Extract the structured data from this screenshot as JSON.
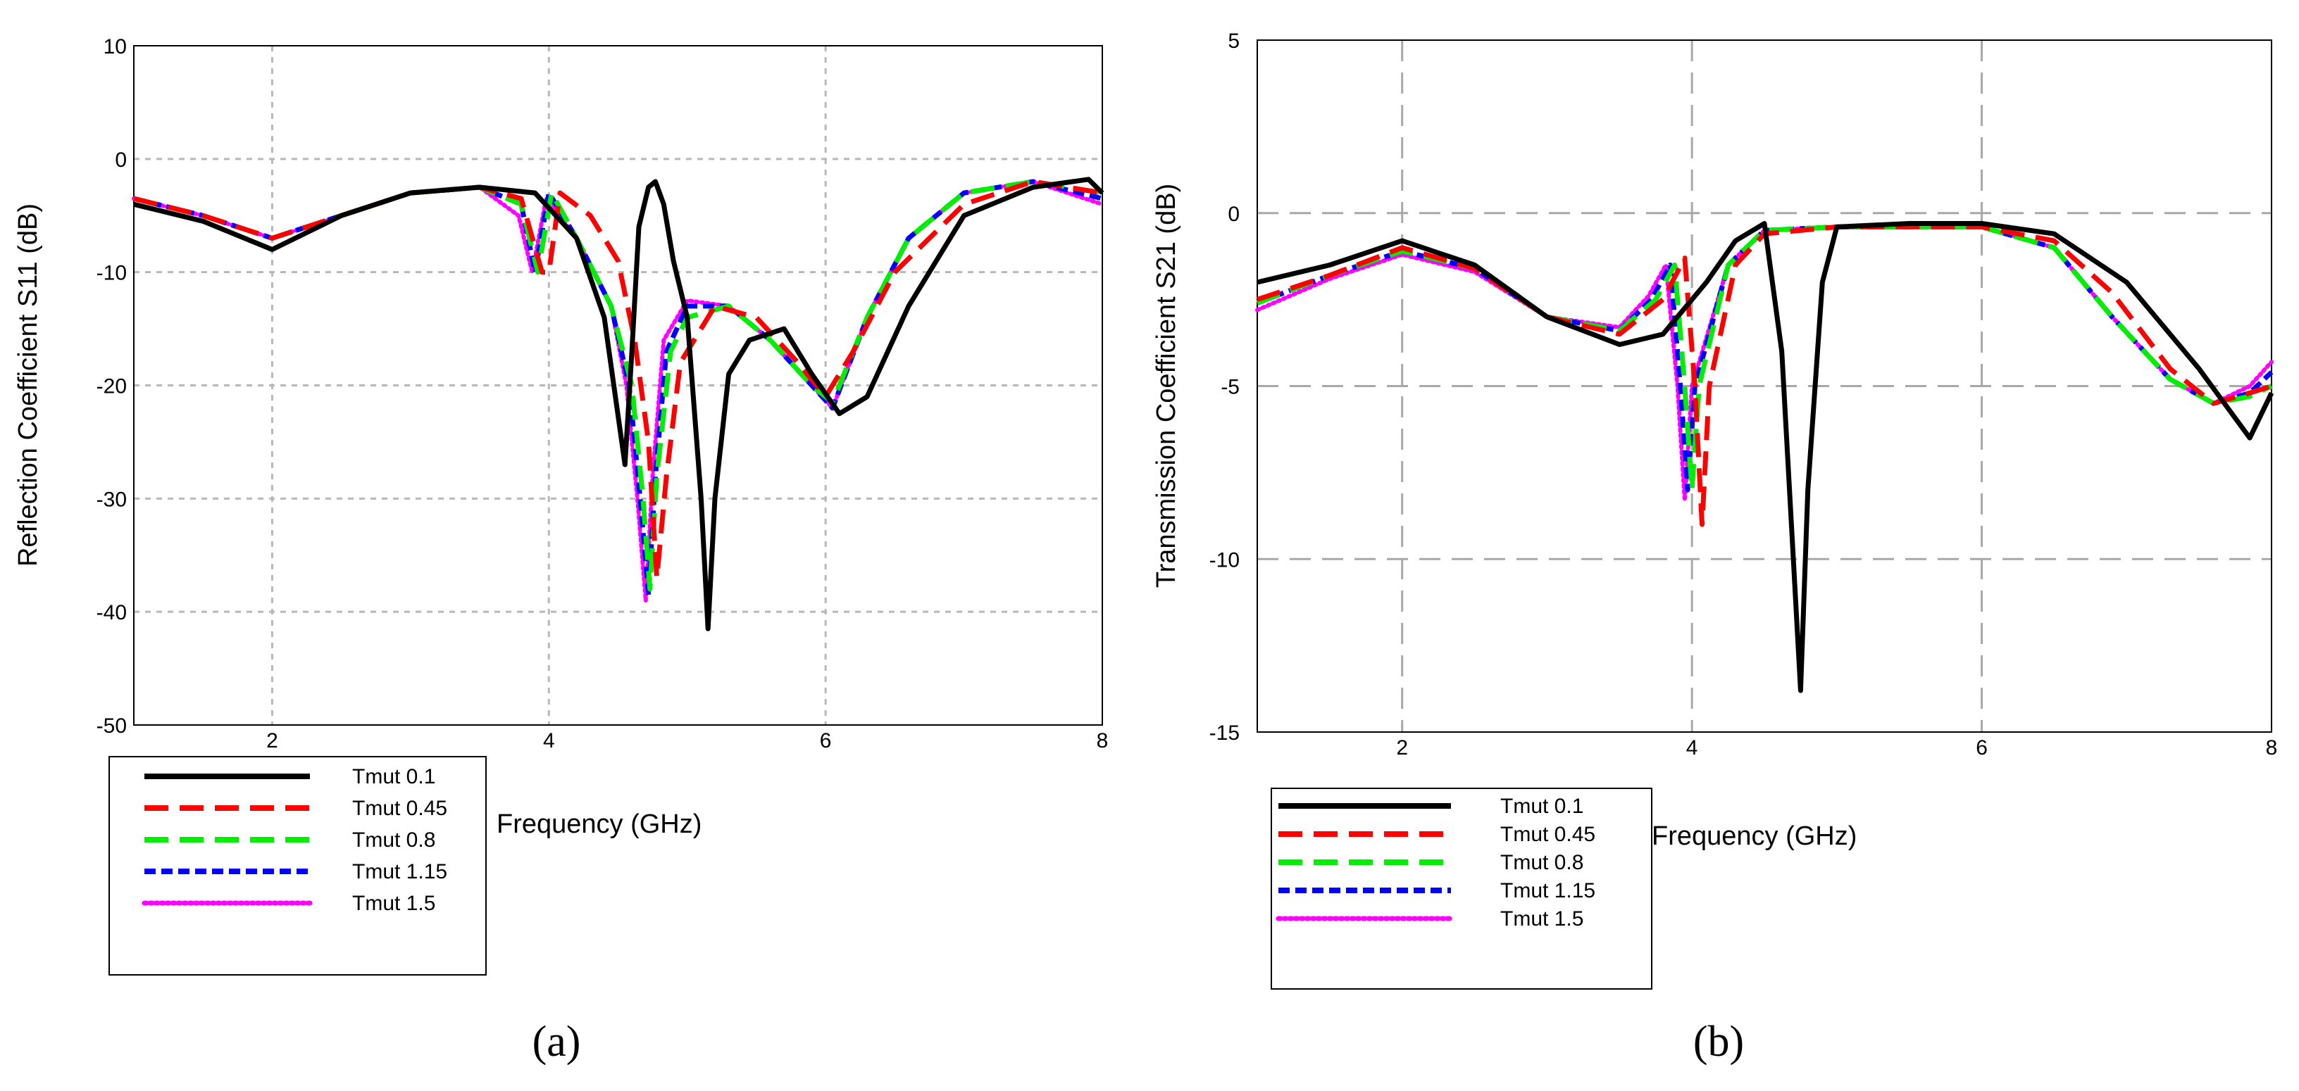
{
  "legend_series": [
    "Tmut 0.1",
    "Tmut 0.45",
    "Tmut 0.8",
    "Tmut 1.15",
    "Tmut 1.5"
  ],
  "series_colors": [
    "#000000",
    "#ff0000",
    "#00ee00",
    "#0000ff",
    "#ff00ff"
  ],
  "series_styles": [
    "solid",
    "long-dash",
    "long-dash",
    "short-dash",
    "dotted"
  ],
  "chart_data": [
    {
      "type": "line",
      "panel_label": "(a)",
      "title": "",
      "xlabel": "Frequency (GHz)",
      "ylabel": "Reflection Coefficient S11 (dB)",
      "xlim": [
        1,
        8
      ],
      "ylim": [
        -50,
        10
      ],
      "xticks": [
        2,
        4,
        6,
        8
      ],
      "yticks": [
        10,
        0,
        -10,
        -20,
        -30,
        -40,
        -50
      ],
      "grid": true,
      "legend_position": "bottom-left",
      "series": [
        {
          "name": "Tmut 0.1",
          "x": [
            1.0,
            1.5,
            2.0,
            2.5,
            3.0,
            3.5,
            3.9,
            4.2,
            4.4,
            4.55,
            4.6,
            4.65,
            4.72,
            4.77,
            4.83,
            4.9,
            5.0,
            5.1,
            5.15,
            5.2,
            5.3,
            5.45,
            5.7,
            5.9,
            6.1,
            6.3,
            6.6,
            7.0,
            7.5,
            7.9,
            8.0
          ],
          "y": [
            -4.0,
            -5.5,
            -8.0,
            -5.0,
            -3.0,
            -2.5,
            -3.0,
            -7.0,
            -14.0,
            -27.0,
            -17.0,
            -6.0,
            -2.5,
            -2.0,
            -4.0,
            -9.0,
            -14.0,
            -30.0,
            -41.5,
            -30.0,
            -19.0,
            -16.0,
            -15.0,
            -19.0,
            -22.5,
            -21.0,
            -13.0,
            -5.0,
            -2.5,
            -1.8,
            -3.0
          ]
        },
        {
          "name": "Tmut 0.45",
          "x": [
            1.0,
            1.5,
            2.0,
            2.5,
            3.0,
            3.5,
            3.8,
            3.95,
            4.0,
            4.08,
            4.3,
            4.5,
            4.62,
            4.72,
            4.78,
            4.85,
            4.95,
            5.2,
            5.5,
            5.8,
            6.0,
            6.2,
            6.5,
            7.0,
            7.5,
            8.0
          ],
          "y": [
            -3.5,
            -5.0,
            -7.0,
            -5.0,
            -3.0,
            -2.5,
            -3.5,
            -10.0,
            -10.0,
            -3.0,
            -5.0,
            -9.0,
            -16.0,
            -25.0,
            -37.0,
            -28.0,
            -18.0,
            -13.0,
            -14.0,
            -18.0,
            -21.0,
            -17.0,
            -10.0,
            -4.0,
            -2.0,
            -3.0
          ]
        },
        {
          "name": "Tmut 0.8",
          "x": [
            1.0,
            1.5,
            2.0,
            2.5,
            3.0,
            3.5,
            3.8,
            3.92,
            4.02,
            4.2,
            4.45,
            4.6,
            4.68,
            4.73,
            4.78,
            4.88,
            5.0,
            5.3,
            5.6,
            5.9,
            6.05,
            6.3,
            6.6,
            7.0,
            7.5,
            8.0
          ],
          "y": [
            -3.5,
            -5.0,
            -7.0,
            -5.0,
            -3.0,
            -2.5,
            -4.0,
            -10.0,
            -3.0,
            -7.0,
            -13.0,
            -20.0,
            -30.0,
            -38.0,
            -28.0,
            -17.0,
            -14.0,
            -13.0,
            -16.0,
            -20.0,
            -21.5,
            -14.0,
            -7.0,
            -3.0,
            -2.0,
            -3.0
          ]
        },
        {
          "name": "Tmut 1.15",
          "x": [
            1.0,
            1.5,
            2.0,
            2.5,
            3.0,
            3.5,
            3.8,
            3.9,
            4.0,
            4.2,
            4.45,
            4.58,
            4.66,
            4.72,
            4.77,
            4.85,
            5.0,
            5.3,
            5.6,
            5.9,
            6.05,
            6.3,
            6.6,
            7.0,
            7.5,
            8.0
          ],
          "y": [
            -3.5,
            -5.0,
            -7.0,
            -5.0,
            -3.0,
            -2.5,
            -4.0,
            -10.0,
            -3.0,
            -7.0,
            -13.0,
            -20.0,
            -30.0,
            -38.5,
            -28.0,
            -17.0,
            -13.0,
            -13.0,
            -16.0,
            -20.0,
            -22.0,
            -14.0,
            -7.0,
            -3.0,
            -2.0,
            -3.5
          ]
        },
        {
          "name": "Tmut 1.5",
          "x": [
            1.0,
            1.5,
            2.0,
            2.5,
            3.0,
            3.5,
            3.78,
            3.88,
            3.98,
            4.2,
            4.45,
            4.56,
            4.64,
            4.7,
            4.75,
            4.83,
            5.0,
            5.3,
            5.6,
            5.9,
            6.05,
            6.3,
            6.6,
            7.0,
            7.5,
            8.0
          ],
          "y": [
            -3.5,
            -5.0,
            -7.0,
            -5.0,
            -3.0,
            -2.5,
            -5.0,
            -10.0,
            -3.5,
            -7.0,
            -13.0,
            -20.0,
            -30.0,
            -39.0,
            -28.0,
            -16.0,
            -12.5,
            -13.0,
            -16.0,
            -20.0,
            -22.0,
            -14.0,
            -7.0,
            -3.0,
            -2.0,
            -4.0
          ]
        }
      ]
    },
    {
      "type": "line",
      "panel_label": "(b)",
      "title": "",
      "xlabel": "Frequency (GHz)",
      "ylabel": "Transmission Coefficient S21 (dB)",
      "xlim": [
        1,
        8
      ],
      "ylim": [
        -15,
        5
      ],
      "xticks": [
        2,
        4,
        6,
        8
      ],
      "yticks": [
        5,
        0,
        -5,
        -10,
        -15
      ],
      "grid": true,
      "legend_position": "bottom-left",
      "series": [
        {
          "name": "Tmut 0.1",
          "x": [
            1.0,
            1.5,
            2.0,
            2.5,
            3.0,
            3.5,
            3.8,
            4.1,
            4.3,
            4.5,
            4.62,
            4.7,
            4.75,
            4.8,
            4.9,
            5.0,
            5.5,
            6.0,
            6.5,
            7.0,
            7.5,
            7.85,
            8.0
          ],
          "y": [
            -2.0,
            -1.5,
            -0.8,
            -1.5,
            -3.0,
            -3.8,
            -3.5,
            -2.0,
            -0.8,
            -0.3,
            -4.0,
            -10.0,
            -13.8,
            -8.0,
            -2.0,
            -0.4,
            -0.3,
            -0.3,
            -0.6,
            -2.0,
            -4.5,
            -6.5,
            -5.2
          ]
        },
        {
          "name": "Tmut 0.45",
          "x": [
            1.0,
            1.5,
            2.0,
            2.5,
            3.0,
            3.5,
            3.8,
            3.95,
            4.02,
            4.07,
            4.12,
            4.3,
            4.5,
            5.0,
            5.5,
            6.0,
            6.5,
            6.9,
            7.3,
            7.6,
            7.85,
            8.0
          ],
          "y": [
            -2.5,
            -1.8,
            -1.0,
            -1.6,
            -3.0,
            -3.5,
            -2.5,
            -1.3,
            -5.0,
            -9.0,
            -5.0,
            -1.5,
            -0.6,
            -0.4,
            -0.4,
            -0.4,
            -0.8,
            -2.3,
            -4.5,
            -5.5,
            -5.2,
            -5.0
          ]
        },
        {
          "name": "Tmut 0.8",
          "x": [
            1.0,
            1.5,
            2.0,
            2.5,
            3.0,
            3.5,
            3.75,
            3.88,
            3.95,
            4.0,
            4.05,
            4.25,
            4.5,
            5.0,
            5.5,
            6.0,
            6.5,
            6.9,
            7.3,
            7.6,
            7.85,
            8.0
          ],
          "y": [
            -2.6,
            -1.8,
            -1.1,
            -1.6,
            -3.0,
            -3.4,
            -2.5,
            -1.5,
            -5.0,
            -8.0,
            -5.0,
            -1.5,
            -0.5,
            -0.4,
            -0.4,
            -0.4,
            -1.0,
            -3.0,
            -4.8,
            -5.5,
            -5.3,
            -5.0
          ]
        },
        {
          "name": "Tmut 1.15",
          "x": [
            1.0,
            1.5,
            2.0,
            2.5,
            3.0,
            3.5,
            3.72,
            3.85,
            3.92,
            3.97,
            4.02,
            4.25,
            4.5,
            5.0,
            5.5,
            6.0,
            6.5,
            6.9,
            7.3,
            7.6,
            7.85,
            8.0
          ],
          "y": [
            -2.6,
            -1.8,
            -1.1,
            -1.6,
            -3.0,
            -3.4,
            -2.5,
            -1.5,
            -5.0,
            -8.0,
            -5.0,
            -1.5,
            -0.5,
            -0.4,
            -0.4,
            -0.4,
            -1.0,
            -3.0,
            -4.8,
            -5.5,
            -5.2,
            -4.6
          ]
        },
        {
          "name": "Tmut 1.5",
          "x": [
            1.0,
            1.5,
            2.0,
            2.5,
            3.0,
            3.5,
            3.7,
            3.82,
            3.9,
            3.95,
            4.0,
            4.25,
            4.5,
            5.0,
            5.5,
            6.0,
            6.5,
            6.9,
            7.3,
            7.6,
            7.85,
            8.0
          ],
          "y": [
            -2.8,
            -1.9,
            -1.2,
            -1.7,
            -3.0,
            -3.3,
            -2.4,
            -1.5,
            -5.0,
            -8.3,
            -5.0,
            -1.5,
            -0.5,
            -0.4,
            -0.4,
            -0.4,
            -1.0,
            -3.0,
            -4.8,
            -5.5,
            -5.0,
            -4.3
          ]
        }
      ]
    }
  ]
}
